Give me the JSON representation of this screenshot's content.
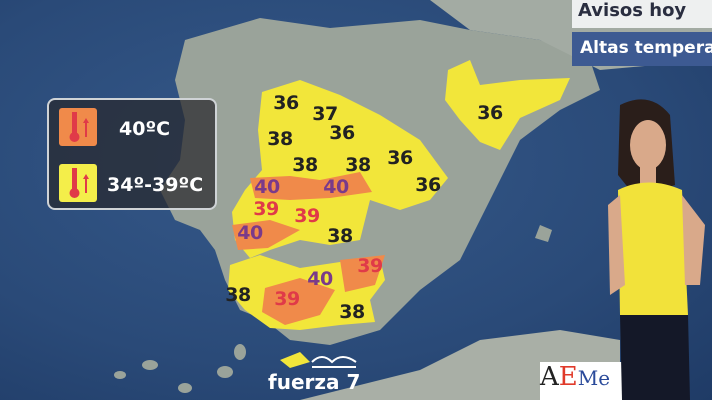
{
  "header": {
    "title": "Avisos hoy",
    "subtitle": "Altas tempera"
  },
  "legend": {
    "items": [
      {
        "label": "40ºC",
        "color": "#f08a4a",
        "icon": "thermometer-up-icon"
      },
      {
        "label": "34º-39ºC",
        "color": "#f4ee4a",
        "icon": "thermometer-up-icon"
      }
    ]
  },
  "map": {
    "colors": {
      "yellow": "#f2e63a",
      "orange": "#f08a4a",
      "land": "#9aa39a",
      "sea": "#2c4f7c"
    },
    "labels": [
      "36",
      "37",
      "36",
      "38",
      "38",
      "38",
      "36",
      "36",
      "36",
      "40",
      "40",
      "39",
      "39",
      "40",
      "38",
      "40",
      "39",
      "39",
      "38",
      "38"
    ]
  },
  "branding": {
    "channel": "fuerza 7",
    "logo": "AEMet"
  }
}
